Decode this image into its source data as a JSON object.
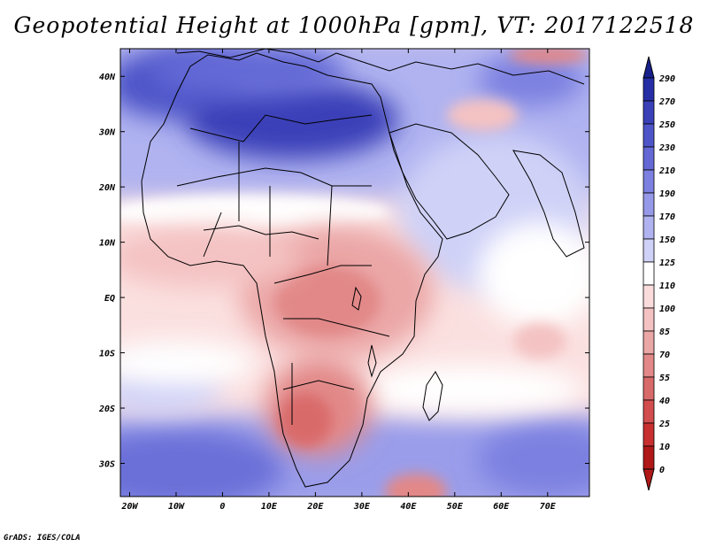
{
  "title": "Geopotential Height at 1000hPa [gpm], VT: 2017122518",
  "credit": "GrADS: IGES/COLA",
  "map": {
    "lat_labels": [
      "40N",
      "30N",
      "20N",
      "10N",
      "EQ",
      "10S",
      "20S",
      "30S"
    ],
    "lon_labels": [
      "20W",
      "10W",
      "0",
      "10E",
      "20E",
      "30E",
      "40E",
      "50E",
      "60E",
      "70E"
    ],
    "lon_range_deg": [
      -22,
      79
    ],
    "lat_range_deg": [
      -36,
      45
    ]
  },
  "colorbar": {
    "levels": [
      "290",
      "270",
      "250",
      "230",
      "210",
      "190",
      "170",
      "150",
      "125",
      "110",
      "100",
      "85",
      "70",
      "55",
      "40",
      "25",
      "10",
      "0"
    ],
    "colors": [
      "#18208c",
      "#262ea6",
      "#3a40b8",
      "#4e55c8",
      "#6469d6",
      "#7c80e0",
      "#9699e8",
      "#b0b3f0",
      "#cfd1f7",
      "#ffffff",
      "#fbdcdc",
      "#f4c2c2",
      "#eba6a6",
      "#e28888",
      "#d96a6a",
      "#d24d4d",
      "#c83030",
      "#b01818"
    ]
  }
}
